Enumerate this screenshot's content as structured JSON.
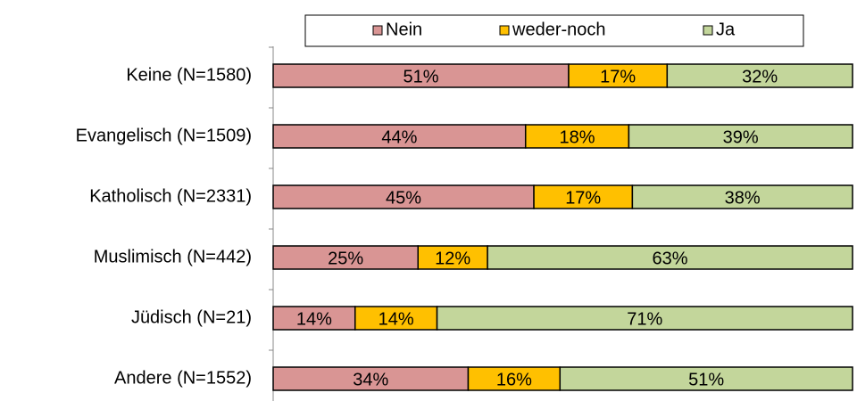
{
  "chart_data": {
    "type": "stacked_bar_horizontal_percent",
    "categories": [
      "Keine (N=1580)",
      "Evangelisch (N=1509)",
      "Katholisch (N=2331)",
      "Muslimisch (N=442)",
      "Jüdisch (N=21)",
      "Andere (N=1552)"
    ],
    "series": [
      {
        "name": "Nein",
        "color": "#d99594",
        "values": [
          51,
          44,
          45,
          25,
          14,
          34
        ],
        "value_labels": [
          "51%",
          "44%",
          "45%",
          "25%",
          "14%",
          "34%"
        ]
      },
      {
        "name": "weder-noch",
        "color": "#ffc000",
        "values": [
          17,
          18,
          17,
          12,
          14,
          16
        ],
        "value_labels": [
          "17%",
          "18%",
          "17%",
          "12%",
          "14%",
          "16%"
        ]
      },
      {
        "name": "Ja",
        "color": "#c3d69b",
        "values": [
          32,
          39,
          38,
          63,
          71,
          51
        ],
        "value_labels": [
          "32%",
          "39%",
          "38%",
          "63%",
          "71%",
          "51%"
        ]
      }
    ],
    "legend": "top"
  }
}
